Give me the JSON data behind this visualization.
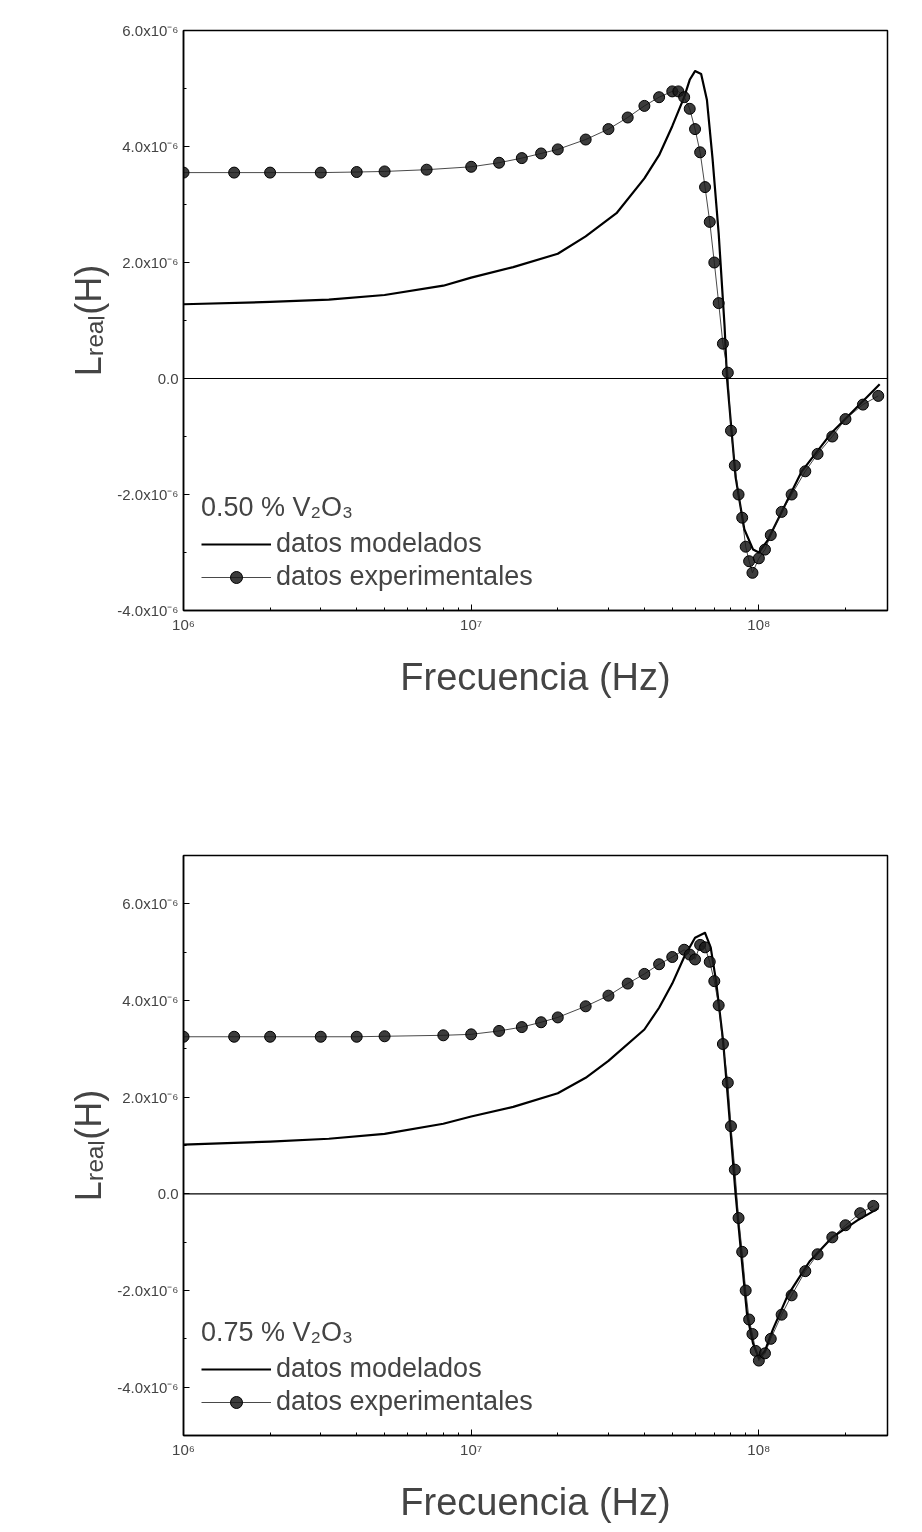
{
  "chart_data": [
    {
      "type": "line",
      "xlabel": "Frecuencia (Hz)",
      "ylabel": "Lᵣₑₐₗ(H)",
      "legend_title": "0.50 % V₂O₃",
      "legend": "bottom left",
      "grid": false,
      "log": "x",
      "xlim": [
        1000000,
        280000000
      ],
      "ylim": [
        -4e-06,
        6e-06
      ],
      "xticks": [
        {
          "value": 1000000,
          "label": "10⁶"
        },
        {
          "value": 10000000,
          "label": "10⁷"
        },
        {
          "value": 100000000,
          "label": "10⁸"
        }
      ],
      "yticks": [
        {
          "value": -4e-06,
          "label": "-4.0x10⁻⁶"
        },
        {
          "value": -3e-06,
          "label": null
        },
        {
          "value": -2e-06,
          "label": "-2.0x10⁻⁶"
        },
        {
          "value": -1e-06,
          "label": null
        },
        {
          "value": 0,
          "label": "0.0"
        },
        {
          "value": 1e-06,
          "label": null
        },
        {
          "value": 2e-06,
          "label": "2.0x10⁻⁶"
        },
        {
          "value": 3e-06,
          "label": null
        },
        {
          "value": 4e-06,
          "label": "4.0x10⁻⁶"
        },
        {
          "value": 5e-06,
          "label": null
        },
        {
          "value": 6e-06,
          "label": "6.0x10⁻⁶"
        }
      ],
      "ref_lines": [
        {
          "axis": "y",
          "value": 0,
          "color": "#000000"
        }
      ],
      "series": [
        {
          "name": "datos modelados",
          "color": "#000000",
          "marker": "none",
          "x": [
            1000000,
            2000000,
            3200000,
            5000000,
            8000000,
            10000000,
            14000000,
            20000000,
            25000000,
            32000000,
            40000000,
            45000000,
            50000000,
            55000000,
            57500000,
            60000000,
            63000000,
            66000000,
            69000000,
            72500000,
            76000000,
            77500000,
            83000000,
            89000000,
            95500000,
            100000000,
            107000000,
            120000000,
            141000000,
            178000000,
            224000000,
            263000000
          ],
          "values": [
            1.28e-06,
            1.32e-06,
            1.36e-06,
            1.44e-06,
            1.6e-06,
            1.74e-06,
            1.92e-06,
            2.15e-06,
            2.45e-06,
            2.85e-06,
            3.45e-06,
            3.85e-06,
            4.35e-06,
            4.85e-06,
            5.15e-06,
            5.3e-06,
            5.25e-06,
            4.8e-06,
            3.8e-06,
            2.5e-06,
            9e-07,
            0,
            -1.7e-06,
            -2.6e-06,
            -2.95e-06,
            -3e-06,
            -2.8e-06,
            -2.3e-06,
            -1.6e-06,
            -9.5e-07,
            -4.5e-07,
            -1e-07
          ]
        },
        {
          "name": "datos experimentales",
          "color": "#1a1a1a",
          "marker": "circle",
          "x": [
            1000000,
            1500000,
            2000000,
            3000000,
            4000000,
            5000000,
            7000000,
            10000000,
            12500000,
            15000000,
            17500000,
            20000000,
            25000000,
            30000000,
            35000000,
            40000000,
            45000000,
            50000000,
            52500000,
            55000000,
            57500000,
            60000000,
            62500000,
            65000000,
            67500000,
            70000000,
            72500000,
            75000000,
            78000000,
            80000000,
            82500000,
            85000000,
            87500000,
            90000000,
            92500000,
            95000000,
            100000000,
            105000000,
            110000000,
            120000000,
            130000000,
            145000000,
            160000000,
            180000000,
            200000000,
            230000000,
            260000000
          ],
          "values": [
            3.55e-06,
            3.55e-06,
            3.55e-06,
            3.55e-06,
            3.56e-06,
            3.57e-06,
            3.6e-06,
            3.65e-06,
            3.72e-06,
            3.8e-06,
            3.88e-06,
            3.95e-06,
            4.12e-06,
            4.3e-06,
            4.5e-06,
            4.7e-06,
            4.85e-06,
            4.95e-06,
            4.95e-06,
            4.85e-06,
            4.65e-06,
            4.3e-06,
            3.9e-06,
            3.3e-06,
            2.7e-06,
            2e-06,
            1.3e-06,
            6e-07,
            1e-07,
            -9e-07,
            -1.5e-06,
            -2e-06,
            -2.4e-06,
            -2.9e-06,
            -3.15e-06,
            -3.35e-06,
            -3.1e-06,
            -2.95e-06,
            -2.7e-06,
            -2.3e-06,
            -2e-06,
            -1.6e-06,
            -1.3e-06,
            -1e-06,
            -7e-07,
            -4.5e-07,
            -3e-07
          ]
        }
      ]
    },
    {
      "type": "line",
      "xlabel": "Frecuencia (Hz)",
      "ylabel": "Lᵣₑₐₗ(H)",
      "legend_title": "0.75 % V₂O₃",
      "legend": "bottom left",
      "grid": false,
      "log": "x",
      "xlim": [
        1000000,
        280000000
      ],
      "ylim": [
        -5e-06,
        7e-06
      ],
      "xticks": [
        {
          "value": 1000000,
          "label": "10⁶"
        },
        {
          "value": 10000000,
          "label": "10⁷"
        },
        {
          "value": 100000000,
          "label": "10⁸"
        }
      ],
      "yticks": [
        {
          "value": -5e-06,
          "label": null
        },
        {
          "value": -4e-06,
          "label": "-4.0x10⁻⁶"
        },
        {
          "value": -3e-06,
          "label": null
        },
        {
          "value": -2e-06,
          "label": "-2.0x10⁻⁶"
        },
        {
          "value": -1e-06,
          "label": null
        },
        {
          "value": 0,
          "label": "0.0"
        },
        {
          "value": 1e-06,
          "label": null
        },
        {
          "value": 2e-06,
          "label": "2.0x10⁻⁶"
        },
        {
          "value": 3e-06,
          "label": null
        },
        {
          "value": 4e-06,
          "label": "4.0x10⁻⁶"
        },
        {
          "value": 5e-06,
          "label": null
        },
        {
          "value": 6e-06,
          "label": "6.0x10⁻⁶"
        },
        {
          "value": 7e-06,
          "label": null
        }
      ],
      "ref_lines": [
        {
          "axis": "y",
          "value": 0,
          "color": "#000000"
        }
      ],
      "series": [
        {
          "name": "datos modelados",
          "color": "#000000",
          "marker": "none",
          "x": [
            1000000,
            2000000,
            3200000,
            5000000,
            8000000,
            10000000,
            14000000,
            20000000,
            25000000,
            30000000,
            40000000,
            45000000,
            50000000,
            55000000,
            60000000,
            65000000,
            68000000,
            71000000,
            75000000,
            78000000,
            83000000,
            87000000,
            91000000,
            95500000,
            100000000,
            105000000,
            112000000,
            126000000,
            150000000,
            180000000,
            220000000,
            260000000
          ],
          "values": [
            1.02e-06,
            1.08e-06,
            1.14e-06,
            1.24e-06,
            1.45e-06,
            1.6e-06,
            1.8e-06,
            2.08e-06,
            2.4e-06,
            2.75e-06,
            3.4e-06,
            3.85e-06,
            4.35e-06,
            4.9e-06,
            5.3e-06,
            5.4e-06,
            5.1e-06,
            4.4e-06,
            3.2e-06,
            2e-06,
            0,
            -1.3e-06,
            -2.5e-06,
            -3.1e-06,
            -3.4e-06,
            -3.25e-06,
            -2.8e-06,
            -2.1e-06,
            -1.4e-06,
            -9e-07,
            -5.5e-07,
            -3e-07
          ]
        },
        {
          "name": "datos experimentales",
          "color": "#1a1a1a",
          "marker": "circle",
          "x": [
            1000000,
            1500000,
            2000000,
            3000000,
            4000000,
            5000000,
            8000000,
            10000000,
            12500000,
            15000000,
            17500000,
            20000000,
            25000000,
            30000000,
            35000000,
            40000000,
            45000000,
            50000000,
            55000000,
            57500000,
            60000000,
            62500000,
            65000000,
            67500000,
            70000000,
            72500000,
            75000000,
            78000000,
            80000000,
            82500000,
            85000000,
            87500000,
            90000000,
            92500000,
            95000000,
            97500000,
            100000000,
            105000000,
            110000000,
            120000000,
            130000000,
            145000000,
            160000000,
            180000000,
            200000000,
            225000000,
            250000000
          ],
          "values": [
            3.25e-06,
            3.25e-06,
            3.25e-06,
            3.25e-06,
            3.25e-06,
            3.26e-06,
            3.28e-06,
            3.3e-06,
            3.37e-06,
            3.45e-06,
            3.55e-06,
            3.65e-06,
            3.88e-06,
            4.1e-06,
            4.35e-06,
            4.55e-06,
            4.75e-06,
            4.9e-06,
            5.05e-06,
            4.95e-06,
            4.85e-06,
            5.15e-06,
            5.1e-06,
            4.8e-06,
            4.4e-06,
            3.9e-06,
            3.1e-06,
            2.3e-06,
            1.4e-06,
            5e-07,
            -5e-07,
            -1.2e-06,
            -2e-06,
            -2.6e-06,
            -2.9e-06,
            -3.25e-06,
            -3.45e-06,
            -3.3e-06,
            -3e-06,
            -2.5e-06,
            -2.1e-06,
            -1.6e-06,
            -1.25e-06,
            -9e-07,
            -6.5e-07,
            -4e-07,
            -2.5e-07
          ]
        }
      ]
    }
  ]
}
